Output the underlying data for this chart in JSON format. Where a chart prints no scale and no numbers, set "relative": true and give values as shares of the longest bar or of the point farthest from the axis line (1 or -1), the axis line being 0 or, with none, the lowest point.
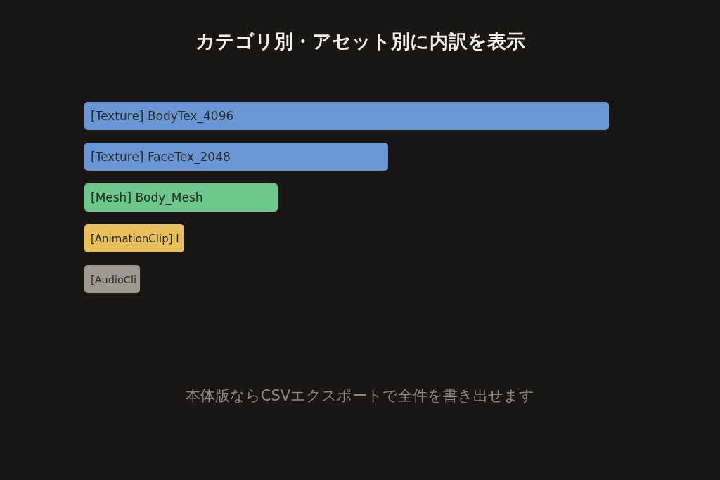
{
  "chart_data": {
    "type": "bar",
    "orientation": "horizontal",
    "relative": true,
    "title": "カテゴリ別・アセット別に内訳を表示",
    "categories": [
      "[Texture] BodyTex_4096",
      "[Texture] FaceTex_2048",
      "[Mesh] Body_Mesh",
      "[AnimationClip] I",
      "[AudioCli"
    ],
    "values": [
      1,
      0.579,
      0.369,
      0.19,
      0.106
    ],
    "colors": [
      "#6b96d6",
      "#6b96d6",
      "#6dc78a",
      "#e8bf5a",
      "#a09990"
    ],
    "annotations": [
      "本体版ならCSVエクスポートで全件を書き出せます"
    ]
  }
}
